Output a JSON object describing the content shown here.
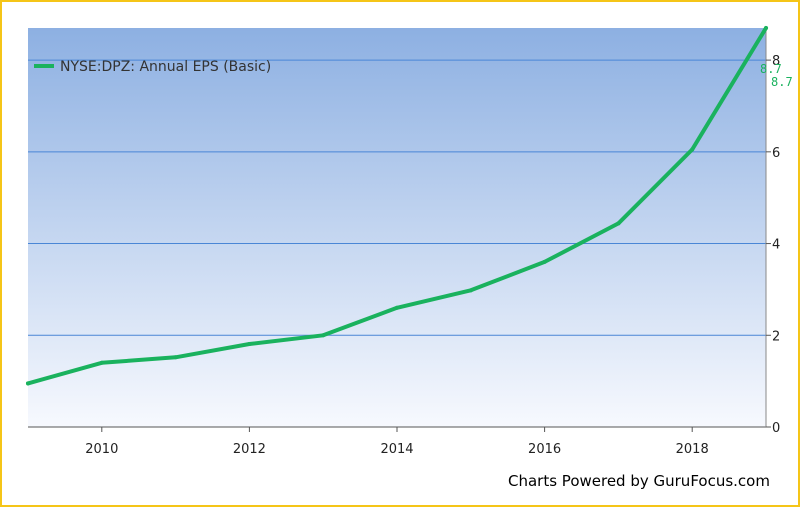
{
  "chart_data": {
    "type": "line",
    "xlabel": "",
    "ylabel": "",
    "xlim": [
      2009,
      2019
    ],
    "ylim": [
      0,
      8.7
    ],
    "x_ticks": [
      2010,
      2012,
      2014,
      2016,
      2018
    ],
    "y_ticks": [
      0,
      2,
      4,
      6,
      8
    ],
    "grid": "horizontal",
    "legend": "top-left",
    "series": [
      {
        "name": "NYSE:DPZ: Annual EPS (Basic)",
        "color": "#1ab25e",
        "x": [
          2009,
          2010,
          2011,
          2012,
          2013,
          2014,
          2015,
          2016,
          2017,
          2018,
          2019
        ],
        "values": [
          0.95,
          1.4,
          1.52,
          1.81,
          2.0,
          2.6,
          2.98,
          3.6,
          4.44,
          6.05,
          8.7
        ]
      }
    ],
    "end_labels": [
      "8.7",
      "8.7"
    ]
  },
  "footer": {
    "credit": "Charts Powered by GuruFocus.com"
  },
  "colors": {
    "border": "#f5c518",
    "plot_top": "#8db0e2",
    "plot_bottom": "#f7f9fe",
    "grid": "#4a86d6",
    "line": "#1ab25e"
  }
}
